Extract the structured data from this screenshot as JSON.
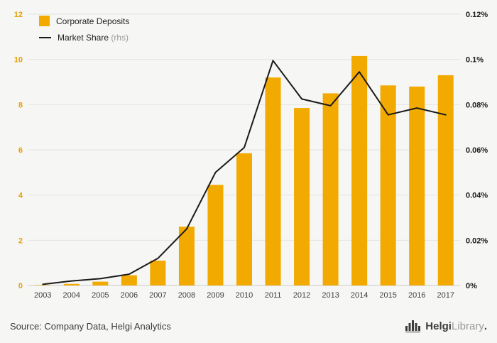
{
  "chart_data": {
    "type": "bar",
    "categories": [
      "2003",
      "2004",
      "2005",
      "2006",
      "2007",
      "2008",
      "2009",
      "2010",
      "2011",
      "2012",
      "2013",
      "2014",
      "2015",
      "2016",
      "2017"
    ],
    "series": [
      {
        "name": "Corporate Deposits",
        "type": "bar",
        "axis": "left",
        "color": "#F2A900",
        "values": [
          0.02,
          0.07,
          0.17,
          0.45,
          1.1,
          2.6,
          4.45,
          5.85,
          9.2,
          7.85,
          8.5,
          10.15,
          8.85,
          8.8,
          9.3
        ]
      },
      {
        "name": "Market Share",
        "suffix": "(rhs)",
        "type": "line",
        "axis": "right",
        "color": "#1a1a1a",
        "values": [
          0.0005,
          0.002,
          0.003,
          0.005,
          0.012,
          0.025,
          0.05,
          0.061,
          0.0995,
          0.0825,
          0.0795,
          0.0945,
          0.0755,
          0.0785,
          0.0755
        ]
      }
    ],
    "left_axis": {
      "min": 0,
      "max": 12,
      "ticks": [
        "0",
        "2",
        "4",
        "6",
        "8",
        "10",
        "12"
      ],
      "color": "#E8A000"
    },
    "right_axis": {
      "min": 0,
      "max": 0.12,
      "ticks": [
        "0%",
        "0.02%",
        "0.04%",
        "0.06%",
        "0.08%",
        "0.1%",
        "0.12%"
      ]
    },
    "grid": true,
    "legend_position": "top-left",
    "title": "",
    "xlabel": "",
    "ylabel": ""
  },
  "footer": {
    "source": "Source: Company Data, Helgi Analytics"
  },
  "logo": {
    "name": "Helgi",
    "suffix": "Library",
    "dot": "."
  }
}
